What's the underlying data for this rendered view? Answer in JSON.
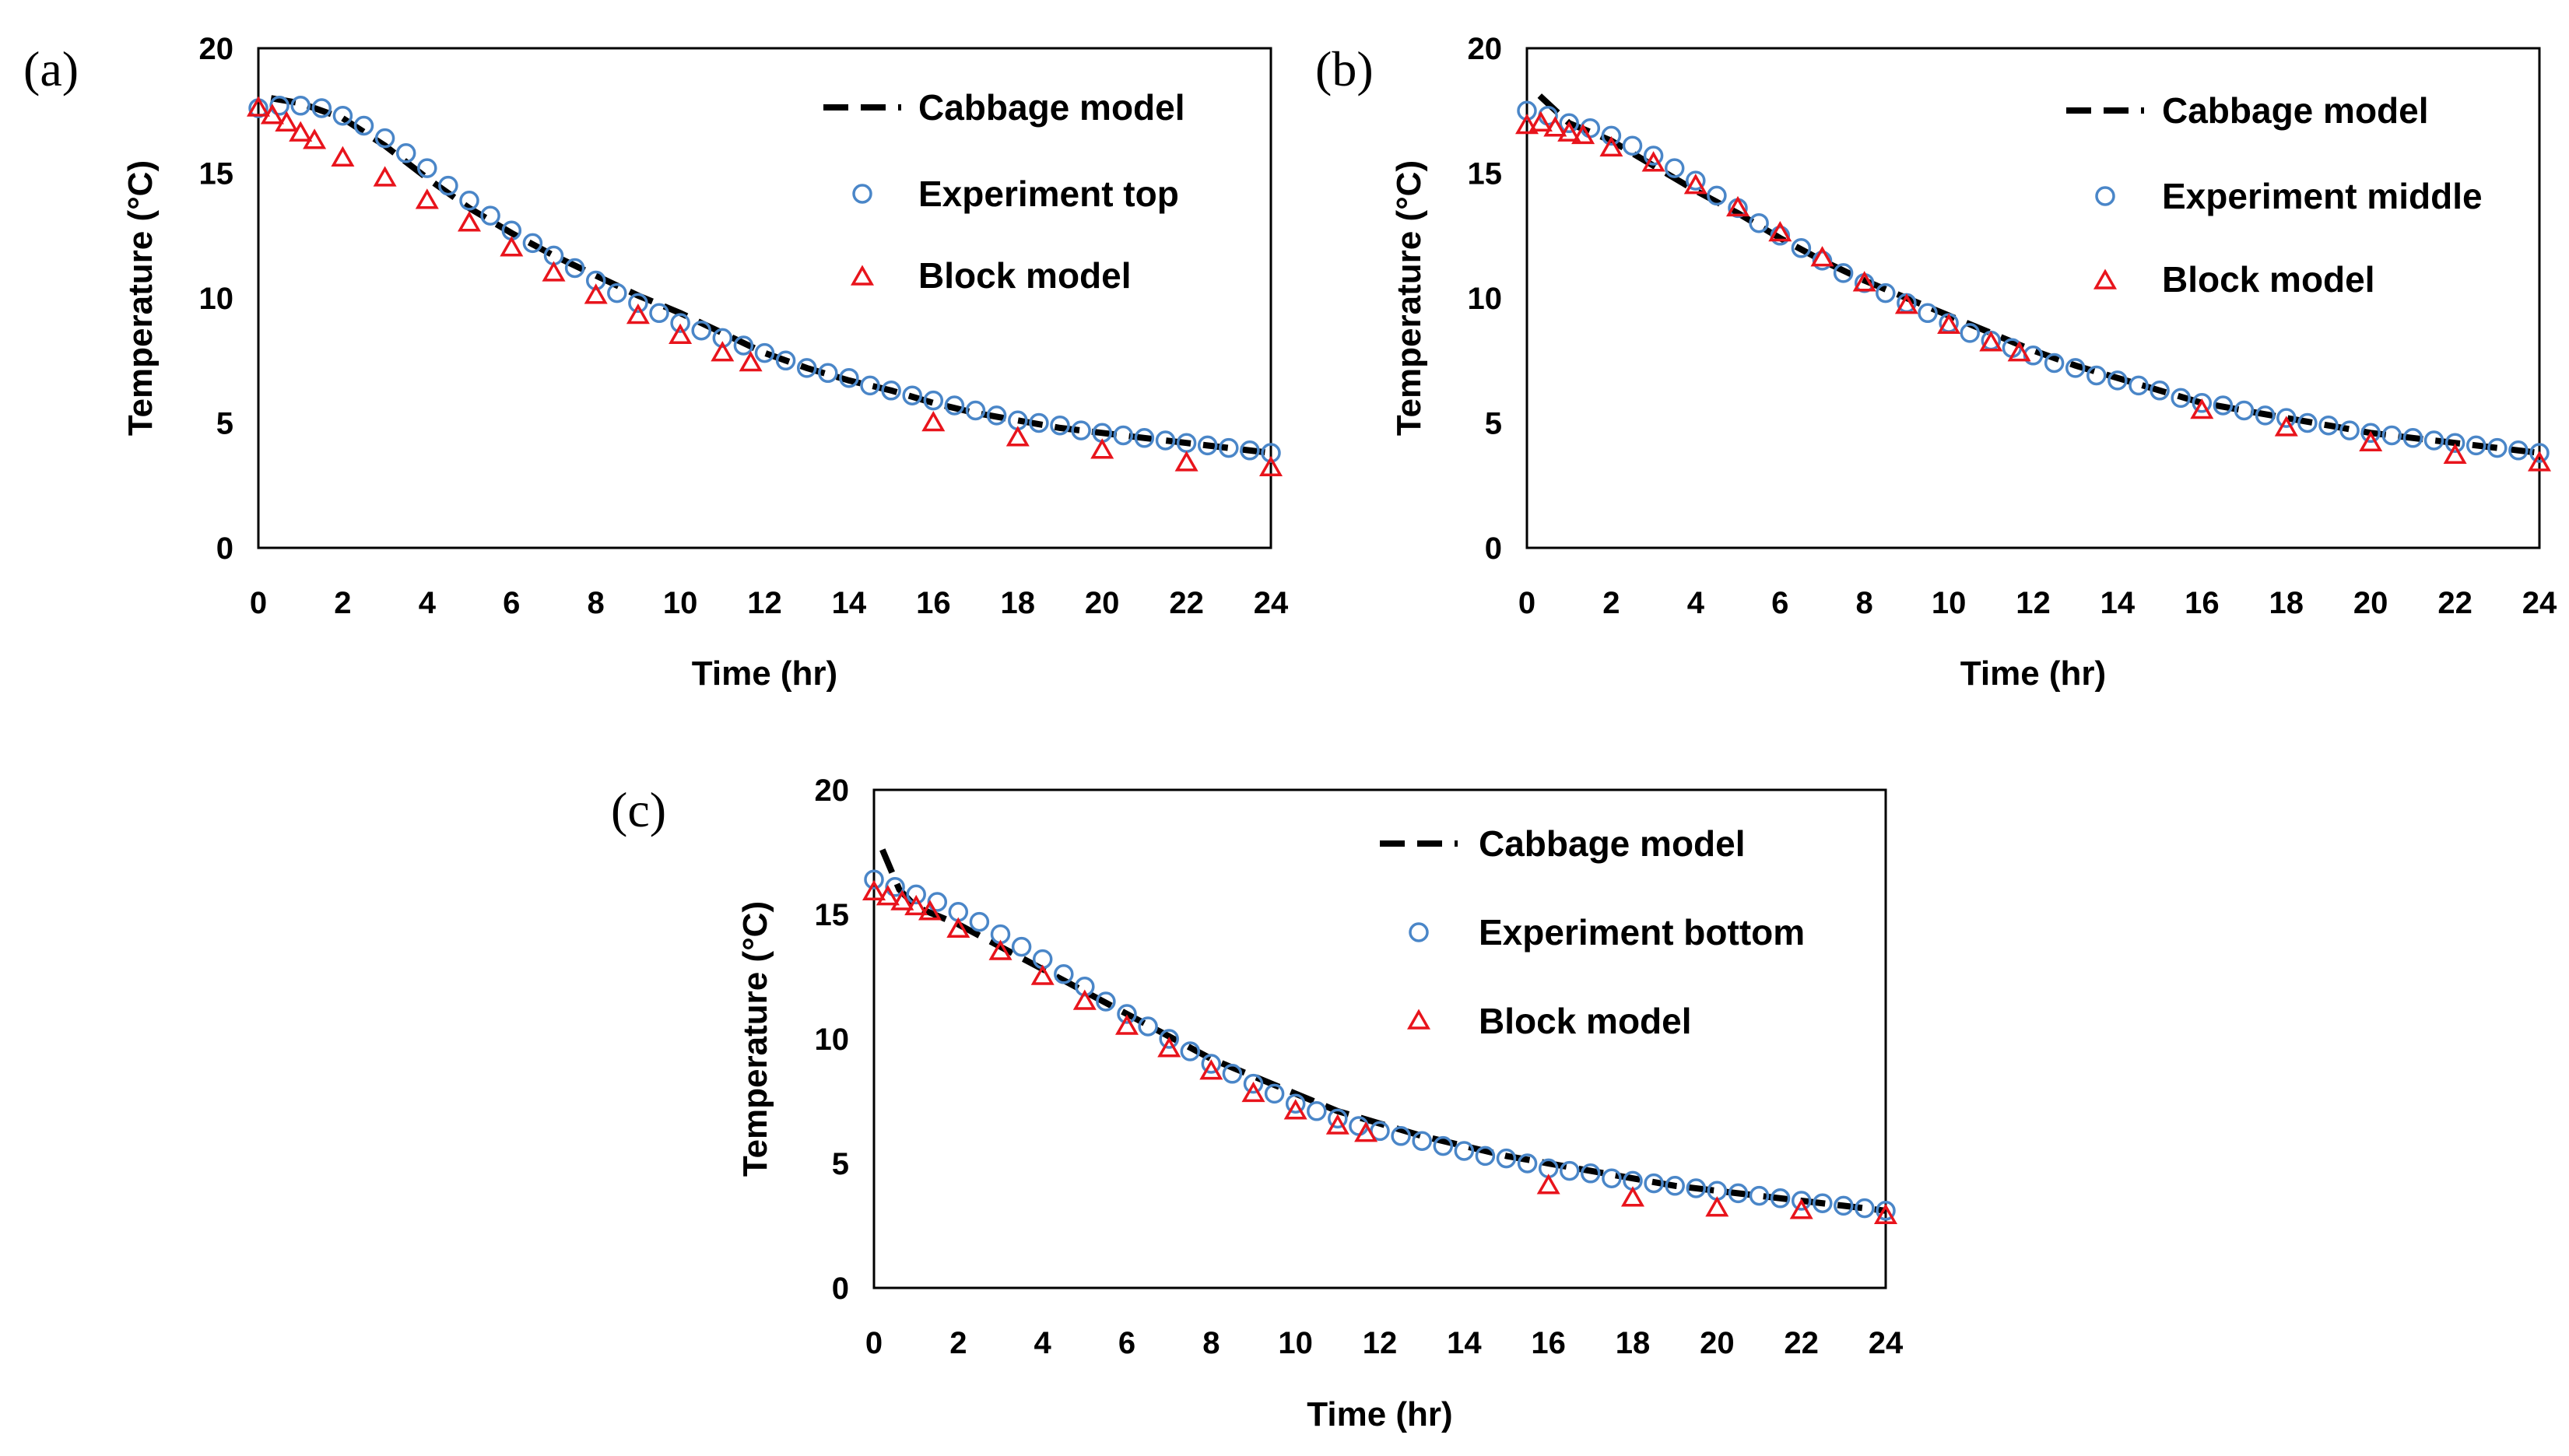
{
  "chart_data": [
    {
      "type": "line",
      "panel_label": "(a)",
      "xlabel": "Time (hr)",
      "ylabel": "Temperature (°C)",
      "xlim": [
        0,
        24
      ],
      "ylim": [
        0,
        20
      ],
      "x_ticks": [
        "0",
        "2",
        "4",
        "6",
        "8",
        "10",
        "12",
        "14",
        "16",
        "18",
        "20",
        "22",
        "24"
      ],
      "y_ticks": [
        "0",
        "5",
        "10",
        "15",
        "20"
      ],
      "legend_position": "top-right",
      "series": [
        {
          "name": "Cabbage model",
          "style": "dashed-line",
          "color": "#000000",
          "x": [
            0.3,
            1,
            2,
            3,
            4,
            5,
            6,
            7,
            8,
            9,
            10,
            11,
            12,
            13,
            14,
            15,
            16,
            17,
            18,
            19,
            20,
            21,
            22,
            23,
            24
          ],
          "y": [
            18.0,
            17.8,
            17.2,
            16.1,
            14.8,
            13.6,
            12.6,
            11.7,
            10.9,
            10.1,
            9.4,
            8.6,
            7.8,
            7.2,
            6.7,
            6.3,
            5.8,
            5.4,
            5.1,
            4.8,
            4.6,
            4.4,
            4.2,
            4.0,
            3.8
          ]
        },
        {
          "name": "Experiment top",
          "style": "open-circle",
          "color": "#4a86c8",
          "x": [
            0,
            0.5,
            1,
            1.5,
            2,
            2.5,
            3,
            3.5,
            4,
            4.5,
            5,
            5.5,
            6,
            6.5,
            7,
            7.5,
            8,
            8.5,
            9,
            9.5,
            10,
            10.5,
            11,
            11.5,
            12,
            12.5,
            13,
            13.5,
            14,
            14.5,
            15,
            15.5,
            16,
            16.5,
            17,
            17.5,
            18,
            18.5,
            19,
            19.5,
            20,
            20.5,
            21,
            21.5,
            22,
            22.5,
            23,
            23.5,
            24
          ],
          "y": [
            17.6,
            17.7,
            17.7,
            17.6,
            17.3,
            16.9,
            16.4,
            15.8,
            15.2,
            14.5,
            13.9,
            13.3,
            12.7,
            12.2,
            11.7,
            11.2,
            10.7,
            10.2,
            9.8,
            9.4,
            9.0,
            8.7,
            8.4,
            8.1,
            7.8,
            7.5,
            7.2,
            7.0,
            6.8,
            6.5,
            6.3,
            6.1,
            5.9,
            5.7,
            5.5,
            5.3,
            5.1,
            5.0,
            4.9,
            4.7,
            4.6,
            4.5,
            4.4,
            4.3,
            4.2,
            4.1,
            4.0,
            3.9,
            3.8
          ]
        },
        {
          "name": "Block model",
          "style": "open-triangle",
          "color": "#e8141c",
          "x": [
            0,
            0.33,
            0.67,
            1,
            1.33,
            2,
            3,
            4,
            5,
            6,
            7,
            8,
            9,
            10,
            11,
            11.67,
            16,
            18,
            20,
            22,
            24
          ],
          "y": [
            17.6,
            17.3,
            17.0,
            16.6,
            16.3,
            15.6,
            14.8,
            13.9,
            13.0,
            12.0,
            11.0,
            10.1,
            9.3,
            8.5,
            7.8,
            7.4,
            5.0,
            4.4,
            3.9,
            3.4,
            3.2
          ]
        }
      ]
    },
    {
      "type": "line",
      "panel_label": "(b)",
      "xlabel": "Time (hr)",
      "ylabel": "Temperature (°C)",
      "xlim": [
        0,
        24
      ],
      "ylim": [
        0,
        20
      ],
      "x_ticks": [
        "0",
        "2",
        "4",
        "6",
        "8",
        "10",
        "12",
        "14",
        "16",
        "18",
        "20",
        "22",
        "24"
      ],
      "y_ticks": [
        "0",
        "5",
        "10",
        "15",
        "20"
      ],
      "legend_position": "top-right",
      "series": [
        {
          "name": "Cabbage model",
          "style": "dashed-line",
          "color": "#000000",
          "x": [
            0.3,
            1,
            2,
            3,
            4,
            5,
            6,
            7,
            8,
            9,
            10,
            11,
            12,
            13,
            14,
            15,
            16,
            17,
            18,
            19,
            20,
            21,
            22,
            23,
            24
          ],
          "y": [
            18.1,
            17.0,
            16.3,
            15.3,
            14.3,
            13.4,
            12.4,
            11.5,
            10.7,
            10.0,
            9.3,
            8.6,
            7.9,
            7.3,
            6.8,
            6.3,
            5.8,
            5.5,
            5.2,
            4.9,
            4.6,
            4.4,
            4.2,
            4.0,
            3.8
          ]
        },
        {
          "name": "Experiment middle",
          "style": "open-circle",
          "color": "#4a86c8",
          "x": [
            0,
            0.5,
            1,
            1.5,
            2,
            2.5,
            3,
            3.5,
            4,
            4.5,
            5,
            5.5,
            6,
            6.5,
            7,
            7.5,
            8,
            8.5,
            9,
            9.5,
            10,
            10.5,
            11,
            11.5,
            12,
            12.5,
            13,
            13.5,
            14,
            14.5,
            15,
            15.5,
            16,
            16.5,
            17,
            17.5,
            18,
            18.5,
            19,
            19.5,
            20,
            20.5,
            21,
            21.5,
            22,
            22.5,
            23,
            23.5,
            24
          ],
          "y": [
            17.5,
            17.3,
            17.0,
            16.8,
            16.5,
            16.1,
            15.7,
            15.2,
            14.7,
            14.1,
            13.6,
            13.0,
            12.5,
            12.0,
            11.5,
            11.0,
            10.6,
            10.2,
            9.8,
            9.4,
            9.0,
            8.6,
            8.3,
            8.0,
            7.7,
            7.4,
            7.2,
            6.9,
            6.7,
            6.5,
            6.3,
            6.0,
            5.8,
            5.7,
            5.5,
            5.3,
            5.2,
            5.0,
            4.9,
            4.7,
            4.6,
            4.5,
            4.4,
            4.3,
            4.2,
            4.1,
            4.0,
            3.9,
            3.8
          ]
        },
        {
          "name": "Block model",
          "style": "open-triangle",
          "color": "#e8141c",
          "x": [
            0,
            0.33,
            0.67,
            1,
            1.33,
            2,
            3,
            4,
            5,
            6,
            7,
            8,
            9,
            10,
            11,
            11.67,
            16,
            18,
            20,
            22,
            24
          ],
          "y": [
            16.9,
            17.0,
            16.8,
            16.6,
            16.5,
            16.0,
            15.4,
            14.5,
            13.6,
            12.6,
            11.6,
            10.6,
            9.7,
            8.9,
            8.2,
            7.8,
            5.5,
            4.8,
            4.2,
            3.7,
            3.4
          ]
        }
      ]
    },
    {
      "type": "line",
      "panel_label": "(c)",
      "xlabel": "Time (hr)",
      "ylabel": "Temperature (°C)",
      "xlim": [
        0,
        24
      ],
      "ylim": [
        0,
        20
      ],
      "x_ticks": [
        "0",
        "2",
        "4",
        "6",
        "8",
        "10",
        "12",
        "14",
        "16",
        "18",
        "20",
        "22",
        "24"
      ],
      "y_ticks": [
        "0",
        "5",
        "10",
        "15",
        "20"
      ],
      "legend_position": "top-right",
      "series": [
        {
          "name": "Cabbage model",
          "style": "dashed-line",
          "color": "#000000",
          "x": [
            0.2,
            0.6,
            1,
            2,
            3,
            4,
            5,
            6,
            7,
            8,
            9,
            10,
            11,
            12,
            13,
            14,
            15,
            16,
            17,
            18,
            19,
            20,
            21,
            22,
            23,
            24
          ],
          "y": [
            17.6,
            16.0,
            15.3,
            14.6,
            13.7,
            12.8,
            11.9,
            11.0,
            10.1,
            9.2,
            8.5,
            7.8,
            7.1,
            6.6,
            6.1,
            5.7,
            5.3,
            5.0,
            4.7,
            4.4,
            4.1,
            3.9,
            3.7,
            3.5,
            3.3,
            3.1
          ]
        },
        {
          "name": "Experiment bottom",
          "style": "open-circle",
          "color": "#4a86c8",
          "x": [
            0,
            0.5,
            1,
            1.5,
            2,
            2.5,
            3,
            3.5,
            4,
            4.5,
            5,
            5.5,
            6,
            6.5,
            7,
            7.5,
            8,
            8.5,
            9,
            9.5,
            10,
            10.5,
            11,
            11.5,
            12,
            12.5,
            13,
            13.5,
            14,
            14.5,
            15,
            15.5,
            16,
            16.5,
            17,
            17.5,
            18,
            18.5,
            19,
            19.5,
            20,
            20.5,
            21,
            21.5,
            22,
            22.5,
            23,
            23.5,
            24
          ],
          "y": [
            16.4,
            16.1,
            15.8,
            15.5,
            15.1,
            14.7,
            14.2,
            13.7,
            13.2,
            12.6,
            12.1,
            11.5,
            11.0,
            10.5,
            10.0,
            9.5,
            9.0,
            8.6,
            8.2,
            7.8,
            7.4,
            7.1,
            6.8,
            6.5,
            6.3,
            6.1,
            5.9,
            5.7,
            5.5,
            5.3,
            5.2,
            5.0,
            4.8,
            4.7,
            4.6,
            4.4,
            4.3,
            4.2,
            4.1,
            4.0,
            3.9,
            3.8,
            3.7,
            3.6,
            3.5,
            3.4,
            3.3,
            3.2,
            3.1
          ]
        },
        {
          "name": "Block model",
          "style": "open-triangle",
          "color": "#e8141c",
          "x": [
            0,
            0.33,
            0.67,
            1,
            1.33,
            2,
            3,
            4,
            5,
            6,
            7,
            8,
            9,
            10,
            11,
            11.67,
            16,
            18,
            20,
            22,
            24
          ],
          "y": [
            15.9,
            15.7,
            15.5,
            15.3,
            15.1,
            14.4,
            13.5,
            12.5,
            11.5,
            10.5,
            9.6,
            8.7,
            7.8,
            7.1,
            6.5,
            6.2,
            4.1,
            3.6,
            3.2,
            3.1,
            2.9
          ]
        }
      ]
    }
  ]
}
